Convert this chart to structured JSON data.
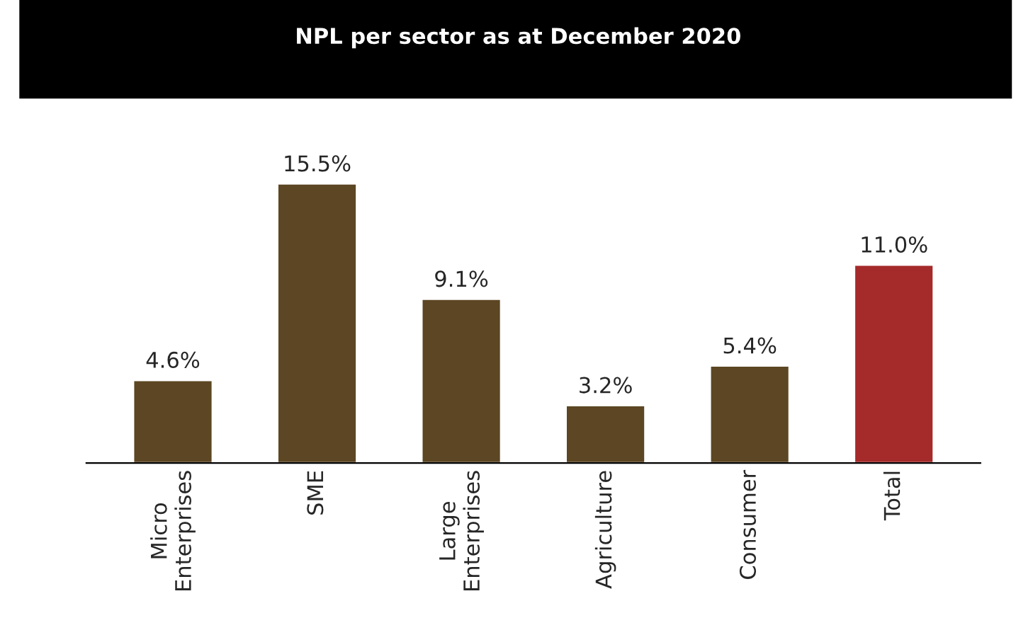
{
  "chart_data": {
    "type": "bar",
    "title": "NPL per sector as at December 2020",
    "categories": [
      "Micro\nEnterprises",
      "SME",
      "Large\nEnterprises",
      "Agriculture",
      "Consumer",
      "Total"
    ],
    "values": [
      4.6,
      15.5,
      9.1,
      3.2,
      5.4,
      11.0
    ],
    "value_labels": [
      "4.6%",
      "15.5%",
      "9.1%",
      "3.2%",
      "5.4%",
      "11.0%"
    ],
    "colors": [
      "#5c4623",
      "#5c4623",
      "#5c4623",
      "#5c4623",
      "#5c4623",
      "#a52a2a"
    ],
    "grid": false,
    "legend": false
  }
}
